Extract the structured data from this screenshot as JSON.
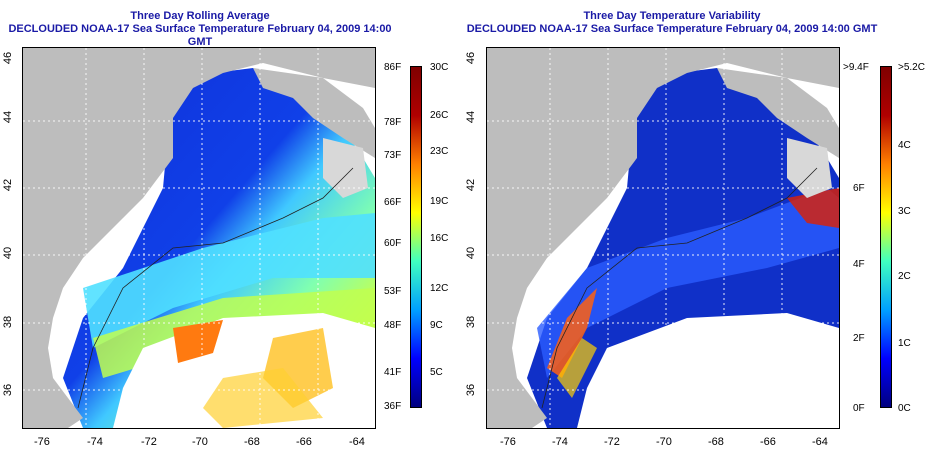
{
  "panels": [
    {
      "id": "left",
      "title_line1": "Three Day Rolling Average",
      "title_line2": "DECLOUDED NOAA-17 Sea Surface Temperature February 04, 2009 14:00 GMT",
      "x_ticks": [
        "-76",
        "-74",
        "-72",
        "-70",
        "-68",
        "-66",
        "-64"
      ],
      "y_ticks": [
        "46",
        "44",
        "42",
        "40",
        "38",
        "36"
      ],
      "colorbar_f": [
        "86F",
        "78F",
        "73F",
        "66F",
        "60F",
        "53F",
        "48F",
        "41F",
        "36F"
      ],
      "colorbar_c": [
        "30C",
        "26C",
        "23C",
        "19C",
        "16C",
        "12C",
        "9C",
        "5C"
      ]
    },
    {
      "id": "right",
      "title_line1": "Three Day Temperature Variability",
      "title_line2": "DECLOUDED NOAA-17 Sea Surface Temperature February 04, 2009 14:00 GMT",
      "x_ticks": [
        "-76",
        "-74",
        "-72",
        "-70",
        "-68",
        "-66",
        "-64"
      ],
      "y_ticks": [
        "46",
        "44",
        "42",
        "40",
        "38",
        "36"
      ],
      "colorbar_f": [
        ">9.4F",
        "6F",
        "4F",
        "2F",
        "0F"
      ],
      "colorbar_c": [
        ">5.2C",
        "4C",
        "3C",
        "2C",
        "1C",
        "0C"
      ]
    }
  ],
  "colors": {
    "land": "#bdbdbd",
    "title": "#1a1aa6",
    "warm_ramp": [
      "#00007f",
      "#0000ff",
      "#00a0ff",
      "#40ffbf",
      "#ffff00",
      "#ff8000",
      "#b00000",
      "#7f0000"
    ],
    "var_ramp": [
      "#00007f",
      "#0000ff",
      "#00a0ff",
      "#40ffbf",
      "#ffff00",
      "#ff8000",
      "#b00000",
      "#7f0000"
    ]
  }
}
